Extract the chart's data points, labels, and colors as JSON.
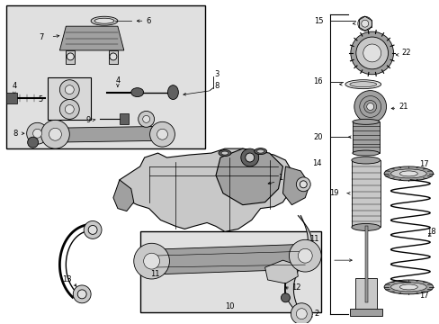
{
  "bg_color": "#ffffff",
  "lc": "#000000",
  "fig_w": 4.89,
  "fig_h": 3.6,
  "dpi": 100,
  "inset_bg": "#e0e0e0",
  "part_gray": "#a0a0a0",
  "dark_gray": "#606060",
  "light_gray": "#c8c8c8",
  "fs": 6.0
}
